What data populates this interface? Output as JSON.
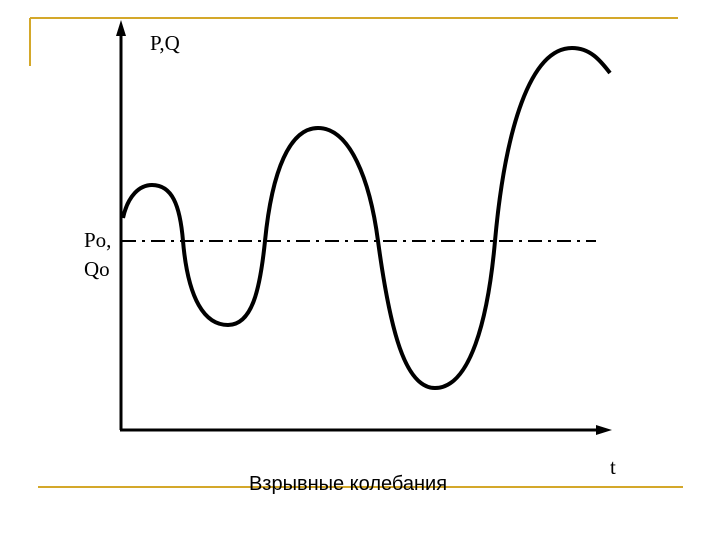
{
  "axes": {
    "y_label": "P,Q",
    "x_label": "t",
    "reference_label": [
      "Po,",
      "Qo"
    ]
  },
  "caption": "Взрывные колебания"
}
